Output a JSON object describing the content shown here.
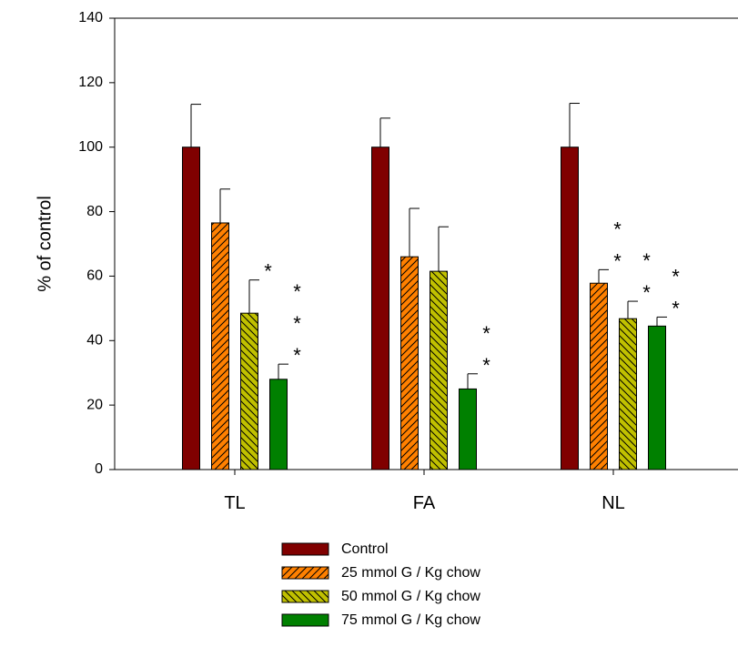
{
  "chart_data": {
    "type": "bar",
    "ylabel": "% of control",
    "xlabel": "",
    "ylim": [
      0,
      140
    ],
    "yticks": [
      0,
      20,
      40,
      60,
      80,
      100,
      120,
      140
    ],
    "categories": [
      "TL",
      "FA",
      "NL"
    ],
    "grid": false,
    "legend_position": "bottom-center",
    "series": [
      {
        "name": "Control",
        "color": "#800000",
        "pattern": "solid",
        "values": [
          100,
          100,
          100
        ],
        "errors": [
          13.3,
          9,
          13.6
        ],
        "significance": [
          "",
          "",
          ""
        ]
      },
      {
        "name": "25 mmol G / Kg chow",
        "color": "#ff8000",
        "pattern": "forward-hatch",
        "values": [
          76.5,
          66,
          57.8
        ],
        "errors": [
          10.5,
          15,
          4.2
        ],
        "significance": [
          "",
          "",
          "**"
        ]
      },
      {
        "name": "50 mmol G / Kg chow",
        "color": "#c0c000",
        "pattern": "back-hatch",
        "values": [
          48.5,
          61.5,
          46.8
        ],
        "errors": [
          10.3,
          13.8,
          5.4
        ],
        "significance": [
          "*",
          "",
          "**"
        ]
      },
      {
        "name": "75 mmol G / Kg chow",
        "color": "#008000",
        "pattern": "solid",
        "values": [
          28,
          25,
          44.5
        ],
        "errors": [
          4.7,
          4.7,
          2.8
        ],
        "significance": [
          "***",
          "**",
          "**"
        ]
      }
    ]
  }
}
